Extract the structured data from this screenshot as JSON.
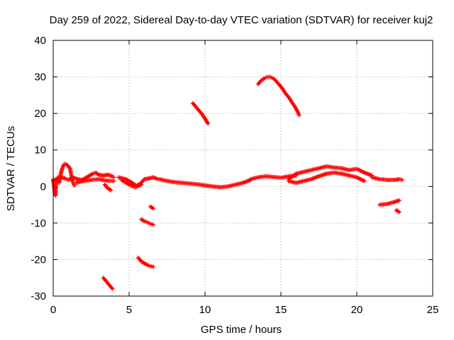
{
  "chart_data": {
    "type": "scatter",
    "title": "Day 259 of 2022, Sidereal Day-to-day VTEC variation (SDTVAR) for receiver kuj2",
    "xlabel": "GPS time / hours",
    "ylabel": "SDTVAR / TECUs",
    "xlim": [
      0,
      25
    ],
    "ylim": [
      -30,
      40
    ],
    "xticks": [
      0,
      5,
      10,
      15,
      20,
      25
    ],
    "yticks": [
      -30,
      -20,
      -10,
      0,
      10,
      20,
      30,
      40
    ],
    "grid": true,
    "marker": "+",
    "series_color": "#ff0000",
    "tracks": [
      {
        "name": "track-early-spike",
        "points": [
          [
            0.0,
            2.0
          ],
          [
            0.1,
            -1.5
          ],
          [
            0.15,
            -2.5
          ],
          [
            0.2,
            1.0
          ],
          [
            0.3,
            2.5
          ],
          [
            0.4,
            1.0
          ],
          [
            0.5,
            3.5
          ],
          [
            0.6,
            5.0
          ],
          [
            0.7,
            6.0
          ],
          [
            0.8,
            6.2
          ],
          [
            0.9,
            6.0
          ],
          [
            1.0,
            5.5
          ],
          [
            1.1,
            5.0
          ],
          [
            1.2,
            3.0
          ],
          [
            1.3,
            1.0
          ],
          [
            1.4,
            0.2
          ]
        ]
      },
      {
        "name": "track-main-0-4",
        "points": [
          [
            0.0,
            1.5
          ],
          [
            0.2,
            2.0
          ],
          [
            0.5,
            2.5
          ],
          [
            0.8,
            2.2
          ],
          [
            1.0,
            1.8
          ],
          [
            1.3,
            2.5
          ],
          [
            1.6,
            2.0
          ],
          [
            1.9,
            1.8
          ],
          [
            2.2,
            2.5
          ],
          [
            2.4,
            3.0
          ],
          [
            2.6,
            3.5
          ],
          [
            2.8,
            3.8
          ],
          [
            3.0,
            3.2
          ],
          [
            3.3,
            3.0
          ],
          [
            3.6,
            3.2
          ],
          [
            3.9,
            2.8
          ],
          [
            4.0,
            2.5
          ]
        ]
      },
      {
        "name": "track-main-low-0-4",
        "points": [
          [
            1.5,
            1.0
          ],
          [
            2.0,
            1.5
          ],
          [
            2.5,
            1.8
          ],
          [
            3.0,
            2.0
          ],
          [
            3.5,
            1.6
          ],
          [
            4.0,
            1.5
          ]
        ]
      },
      {
        "name": "track-dip-3-5",
        "points": [
          [
            3.4,
            0.5
          ],
          [
            3.6,
            -0.5
          ],
          [
            3.8,
            -1.0
          ]
        ]
      },
      {
        "name": "track-4-7",
        "points": [
          [
            4.3,
            2.5
          ],
          [
            4.8,
            2.0
          ],
          [
            5.2,
            1.0
          ],
          [
            5.5,
            0.2
          ],
          [
            5.8,
            1.0
          ],
          [
            6.0,
            2.0
          ],
          [
            6.3,
            2.2
          ],
          [
            6.6,
            2.5
          ],
          [
            6.9,
            2.0
          ]
        ]
      },
      {
        "name": "track-4-7-low",
        "points": [
          [
            4.5,
            1.8
          ],
          [
            5.0,
            0.5
          ],
          [
            5.4,
            -0.2
          ],
          [
            5.8,
            0.5
          ]
        ]
      },
      {
        "name": "track-7-13",
        "points": [
          [
            7.0,
            2.0
          ],
          [
            7.5,
            1.5
          ],
          [
            8.0,
            1.2
          ],
          [
            8.5,
            1.0
          ],
          [
            9.0,
            0.8
          ],
          [
            9.5,
            0.6
          ],
          [
            10.0,
            0.3
          ],
          [
            10.5,
            0.0
          ],
          [
            11.0,
            -0.2
          ],
          [
            11.5,
            0.0
          ],
          [
            12.0,
            0.5
          ],
          [
            12.5,
            1.0
          ],
          [
            13.0,
            1.8
          ]
        ]
      },
      {
        "name": "track-13-16",
        "points": [
          [
            13.0,
            2.0
          ],
          [
            13.5,
            2.5
          ],
          [
            14.0,
            2.8
          ],
          [
            14.5,
            2.6
          ],
          [
            15.0,
            2.4
          ],
          [
            15.5,
            2.8
          ],
          [
            16.0,
            3.0
          ]
        ]
      },
      {
        "name": "track-15-21-upper",
        "points": [
          [
            15.5,
            2.0
          ],
          [
            16.0,
            3.5
          ],
          [
            16.5,
            4.0
          ],
          [
            17.0,
            4.5
          ],
          [
            17.5,
            5.0
          ],
          [
            18.0,
            5.5
          ],
          [
            18.5,
            5.2
          ],
          [
            19.0,
            5.0
          ],
          [
            19.5,
            4.5
          ],
          [
            20.0,
            4.8
          ],
          [
            20.5,
            3.8
          ],
          [
            21.0,
            3.0
          ]
        ]
      },
      {
        "name": "track-15-21-lower",
        "points": [
          [
            15.5,
            1.5
          ],
          [
            16.0,
            1.0
          ],
          [
            16.5,
            1.5
          ],
          [
            17.0,
            2.0
          ],
          [
            17.5,
            2.8
          ],
          [
            18.0,
            3.5
          ],
          [
            18.5,
            3.8
          ],
          [
            19.0,
            3.5
          ],
          [
            19.5,
            3.0
          ],
          [
            20.0,
            2.5
          ],
          [
            20.5,
            1.5
          ]
        ]
      },
      {
        "name": "track-21-23",
        "points": [
          [
            21.0,
            2.5
          ],
          [
            21.5,
            2.0
          ],
          [
            22.0,
            1.8
          ],
          [
            22.5,
            1.8
          ],
          [
            22.8,
            2.0
          ],
          [
            23.0,
            1.8
          ]
        ]
      },
      {
        "name": "track-arc-14",
        "points": [
          [
            13.5,
            28.0
          ],
          [
            13.7,
            29.0
          ],
          [
            13.9,
            29.6
          ],
          [
            14.1,
            30.0
          ],
          [
            14.3,
            30.0
          ],
          [
            14.5,
            29.6
          ],
          [
            14.7,
            28.8
          ],
          [
            14.9,
            27.8
          ],
          [
            15.1,
            26.8
          ],
          [
            15.3,
            25.5
          ],
          [
            15.5,
            24.5
          ],
          [
            15.7,
            23.2
          ],
          [
            15.9,
            22.0
          ],
          [
            16.1,
            20.5
          ],
          [
            16.2,
            19.5
          ]
        ]
      },
      {
        "name": "track-arc-9",
        "points": [
          [
            9.2,
            22.8
          ],
          [
            9.4,
            21.8
          ],
          [
            9.6,
            20.8
          ],
          [
            9.8,
            19.8
          ],
          [
            10.0,
            18.6
          ],
          [
            10.2,
            17.2
          ]
        ]
      },
      {
        "name": "track-neg-6-a",
        "points": [
          [
            5.8,
            -9.0
          ],
          [
            6.0,
            -9.5
          ],
          [
            6.2,
            -9.8
          ],
          [
            6.4,
            -10.2
          ],
          [
            6.6,
            -10.5
          ]
        ]
      },
      {
        "name": "track-neg-6-b",
        "points": [
          [
            6.4,
            -5.5
          ],
          [
            6.6,
            -6.0
          ]
        ]
      },
      {
        "name": "track-neg-6-c",
        "points": [
          [
            5.6,
            -19.5
          ],
          [
            5.8,
            -20.5
          ],
          [
            6.0,
            -21.0
          ],
          [
            6.2,
            -21.5
          ],
          [
            6.4,
            -21.8
          ],
          [
            6.6,
            -22.0
          ]
        ]
      },
      {
        "name": "track-neg-3",
        "points": [
          [
            3.3,
            -25.0
          ],
          [
            3.5,
            -26.0
          ],
          [
            3.7,
            -27.0
          ],
          [
            3.9,
            -28.0
          ]
        ]
      },
      {
        "name": "track-neg-22",
        "points": [
          [
            21.5,
            -5.0
          ],
          [
            22.0,
            -4.8
          ],
          [
            22.5,
            -4.2
          ],
          [
            22.8,
            -3.8
          ]
        ]
      },
      {
        "name": "track-neg-23",
        "points": [
          [
            22.6,
            -6.5
          ],
          [
            22.8,
            -7.0
          ]
        ]
      }
    ]
  }
}
